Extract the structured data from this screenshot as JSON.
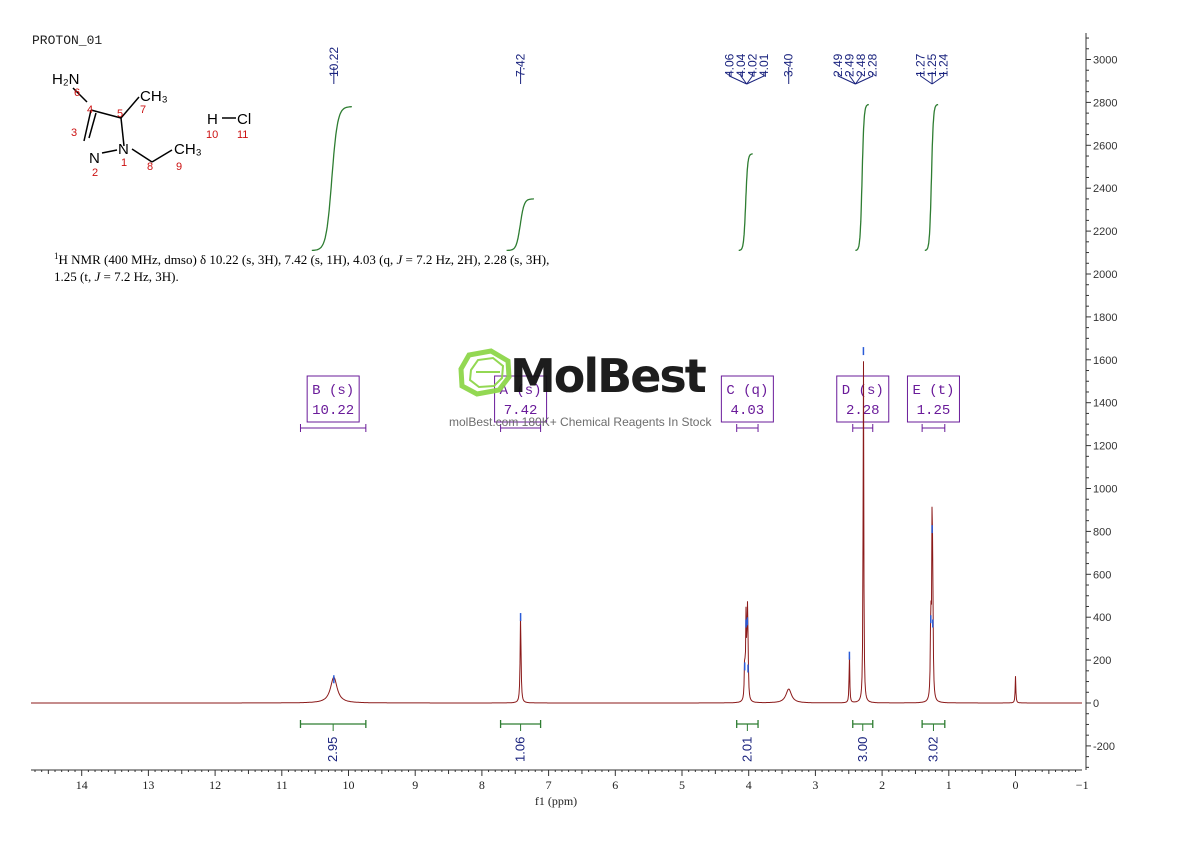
{
  "spectrum_title": "PROTON_01",
  "nmr_summary": {
    "line1_prefix": "1",
    "line1_body": "H NMR (400 MHz, dmso) δ 10.22 (s, 3H), 7.42 (s, 1H), 4.03 (q, ",
    "line1_j": "J",
    "line1_tail": " = 7.2 Hz, 2H), 2.28 (s, 3H),",
    "line2_head": "1.25 (t, ",
    "line2_j": "J",
    "line2_tail": " = 7.2 Hz, 3H)."
  },
  "structure": {
    "labels": {
      "h2n": "H₂N",
      "ch3_top": "CH₃",
      "ch3_right": "CH₃",
      "n_ring": "N",
      "n_eth": "N",
      "h": "H",
      "cl": "Cl"
    },
    "atom_numbers": [
      "6",
      "4",
      "7",
      "5",
      "3",
      "1",
      "8",
      "9",
      "2",
      "10",
      "11"
    ],
    "colors": {
      "bond": "#000000",
      "number": "#cc1111"
    }
  },
  "watermark": {
    "brand": "MolBest",
    "tagline": "molBest.com 180K+ Chemical Reagents In Stock",
    "logo_color": "#8ed64a"
  },
  "chart_data": {
    "type": "line",
    "xlabel": "f1 (ppm)",
    "xlim": [
      14.8,
      -1
    ],
    "ylim": [
      -300,
      3100
    ],
    "x_ticks": [
      14,
      13,
      12,
      11,
      10,
      9,
      8,
      7,
      6,
      5,
      4,
      3,
      2,
      1,
      0,
      -1
    ],
    "y_ticks": [
      3000,
      2800,
      2600,
      2400,
      2200,
      2000,
      1800,
      1600,
      1400,
      1200,
      1000,
      800,
      600,
      400,
      200,
      0,
      -200
    ],
    "series": [
      {
        "line_color": "#8b1a1a",
        "peaks": [
          {
            "x": 10.22,
            "height": 120,
            "width": 0.06
          },
          {
            "x": 7.42,
            "height": 410,
            "width": 0.008
          },
          {
            "x": 4.06,
            "height": 180,
            "width": 0.007
          },
          {
            "x": 4.04,
            "height": 380,
            "width": 0.007
          },
          {
            "x": 4.02,
            "height": 390,
            "width": 0.007
          },
          {
            "x": 4.01,
            "height": 170,
            "width": 0.007
          },
          {
            "x": 3.4,
            "height": 65,
            "width": 0.05
          },
          {
            "x": 2.49,
            "height": 230,
            "width": 0.006
          },
          {
            "x": 2.28,
            "height": 1650,
            "width": 0.006
          },
          {
            "x": 1.27,
            "height": 400,
            "width": 0.007
          },
          {
            "x": 1.25,
            "height": 820,
            "width": 0.007
          },
          {
            "x": 1.24,
            "height": 380,
            "width": 0.007
          },
          {
            "x": 0.0,
            "height": 125,
            "width": 0.006
          }
        ]
      }
    ],
    "peak_labels": [
      {
        "group": [
          "10.22"
        ],
        "anchor": 10.22
      },
      {
        "group": [
          "7.42"
        ],
        "anchor": 7.42
      },
      {
        "group": [
          "4.06",
          "4.04",
          "4.02",
          "4.01"
        ],
        "anchor": 4.03
      },
      {
        "group": [
          "3.40"
        ],
        "anchor": 3.4
      },
      {
        "group": [
          "2.49",
          "2.49",
          "2.48",
          "2.28"
        ],
        "anchor": 2.4
      },
      {
        "group": [
          "1.27",
          "1.25",
          "1.24"
        ],
        "anchor": 1.25
      }
    ],
    "integral_curves": [
      {
        "x_from": 10.55,
        "x_to": 9.95,
        "y_start": 2110,
        "y_end": 2780
      },
      {
        "x_from": 7.63,
        "x_to": 7.22,
        "y_start": 2110,
        "y_end": 2350
      },
      {
        "x_from": 4.15,
        "x_to": 3.94,
        "y_start": 2110,
        "y_end": 2560
      },
      {
        "x_from": 2.4,
        "x_to": 2.2,
        "y_start": 2110,
        "y_end": 2790
      },
      {
        "x_from": 1.36,
        "x_to": 1.16,
        "y_start": 2110,
        "y_end": 2790
      }
    ],
    "multiplets": [
      {
        "letter": "B",
        "mult": "(s)",
        "shift": "10.22",
        "range": [
          10.72,
          9.74
        ]
      },
      {
        "letter": "A",
        "mult": "(s)",
        "shift": "7.42",
        "range": [
          7.72,
          7.12
        ]
      },
      {
        "letter": "C",
        "mult": "(q)",
        "shift": "4.03",
        "range": [
          4.18,
          3.86
        ]
      },
      {
        "letter": "D",
        "mult": "(s)",
        "shift": "2.28",
        "range": [
          2.44,
          2.14
        ]
      },
      {
        "letter": "E",
        "mult": "(t)",
        "shift": "1.25",
        "range": [
          1.4,
          1.06
        ]
      }
    ],
    "integrals": [
      {
        "value": "2.95",
        "range": [
          10.72,
          9.74
        ]
      },
      {
        "value": "1.06",
        "range": [
          7.72,
          7.12
        ]
      },
      {
        "value": "2.01",
        "range": [
          4.18,
          3.86
        ]
      },
      {
        "value": "3.00",
        "range": [
          2.44,
          2.14
        ]
      },
      {
        "value": "3.02",
        "range": [
          1.4,
          1.06
        ]
      }
    ],
    "colors": {
      "spectrum": "#8b1a1a",
      "peak_label_text": "#1a237e",
      "integral_curve": "#2e7d32",
      "integral_value": "#1a237e",
      "integral_bracket": "#2e7d32",
      "multiplet_box": "#6a1b9a",
      "multiplet_text": "#6a1b9a",
      "axis": "#333333"
    }
  }
}
